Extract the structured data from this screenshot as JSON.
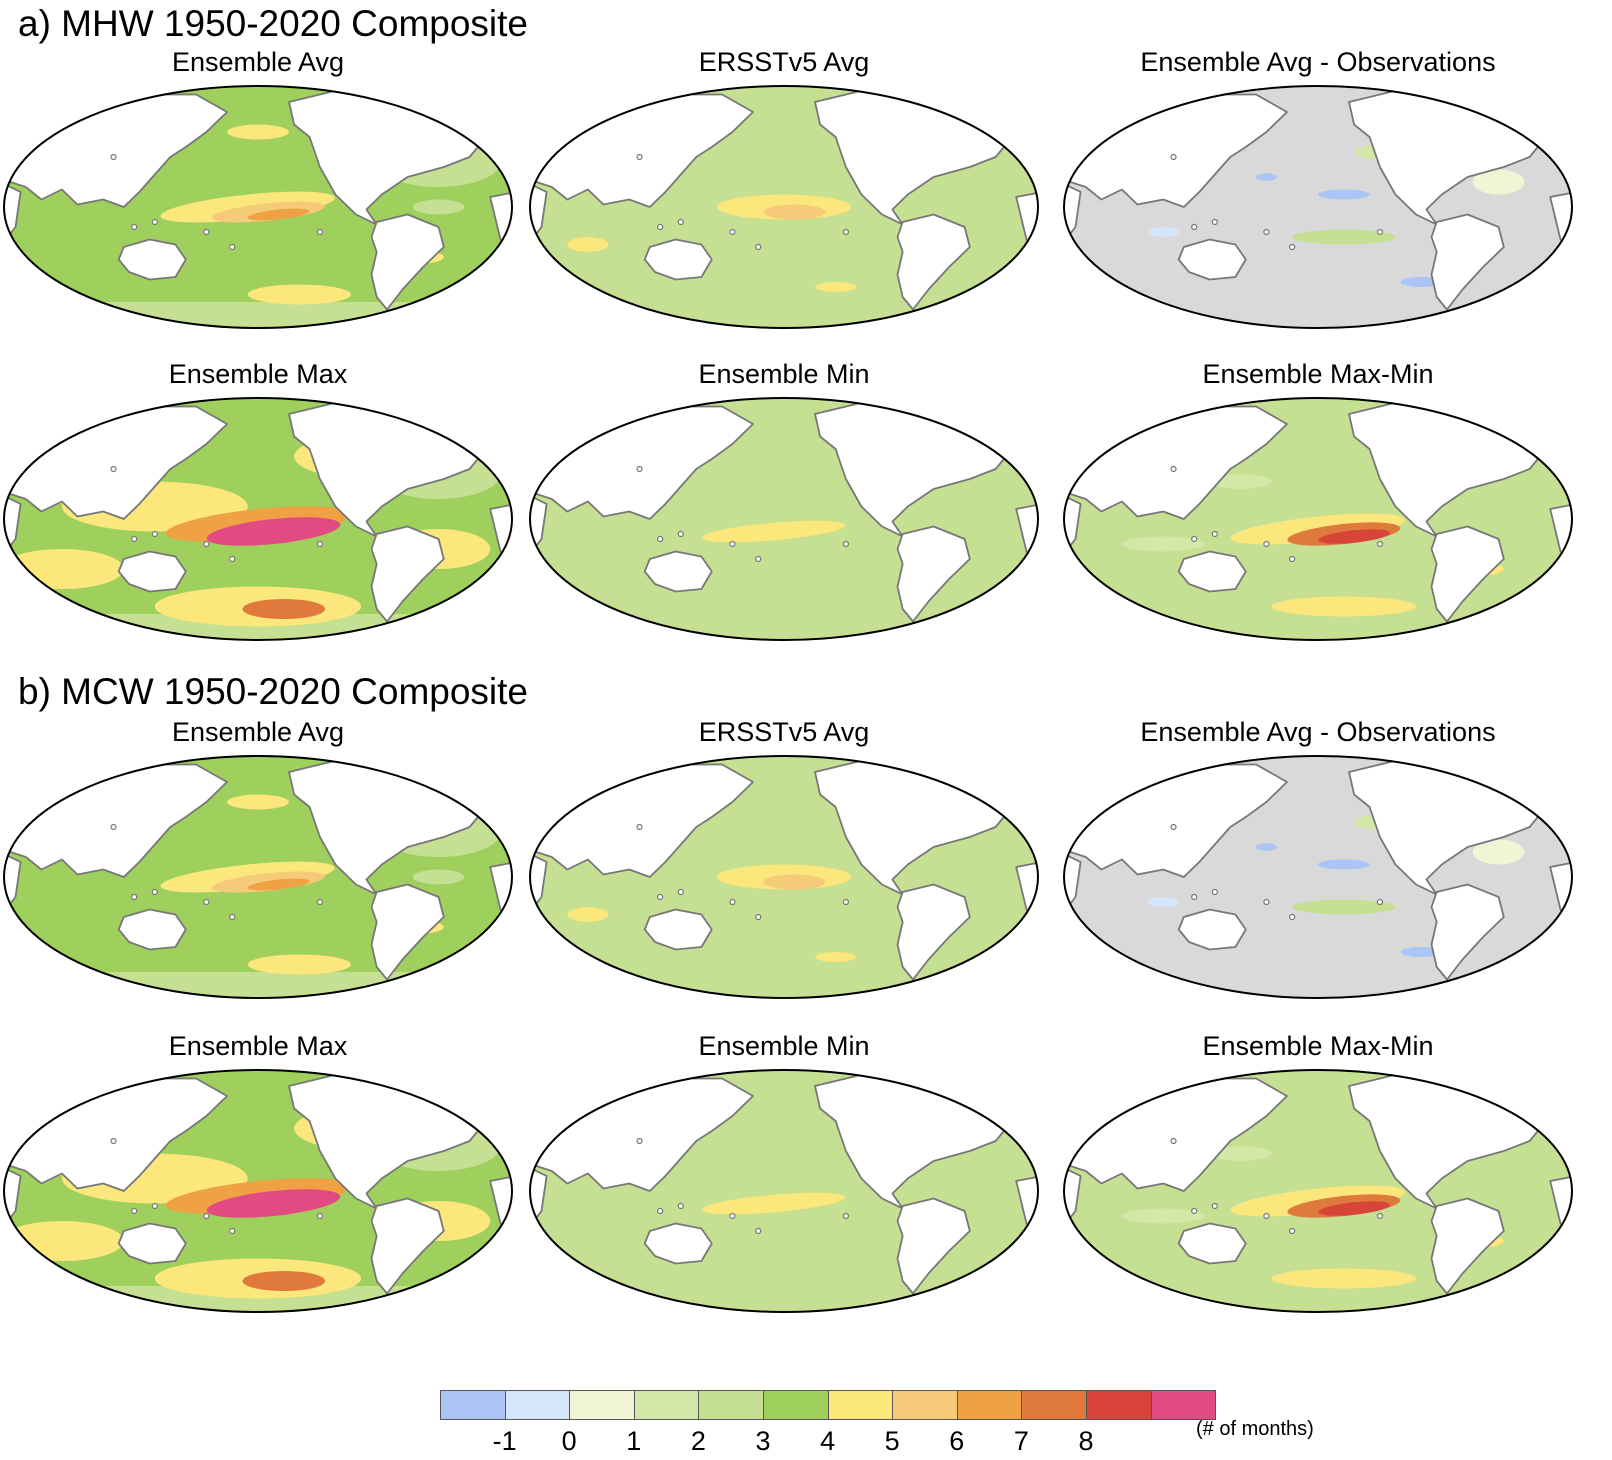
{
  "sections": [
    {
      "title": "a) MHW 1950-2020 Composite",
      "panels": [
        {
          "title": "Ensemble Avg",
          "scheme": "avg"
        },
        {
          "title": "ERSSTv5 Avg",
          "scheme": "obs"
        },
        {
          "title": "Ensemble Avg - Observations",
          "scheme": "diff"
        },
        {
          "title": "Ensemble Max",
          "scheme": "max"
        },
        {
          "title": "Ensemble Min",
          "scheme": "min"
        },
        {
          "title": "Ensemble Max-Min",
          "scheme": "range"
        }
      ]
    },
    {
      "title": "b) MCW 1950-2020 Composite",
      "panels": [
        {
          "title": "Ensemble Avg",
          "scheme": "avg"
        },
        {
          "title": "ERSSTv5 Avg",
          "scheme": "obs"
        },
        {
          "title": "Ensemble Avg - Observations",
          "scheme": "diff"
        },
        {
          "title": "Ensemble Max",
          "scheme": "max"
        },
        {
          "title": "Ensemble Min",
          "scheme": "min"
        },
        {
          "title": "Ensemble Max-Min",
          "scheme": "range"
        }
      ]
    }
  ],
  "colorbar": {
    "colors": [
      "#a9c4f5",
      "#d5e6fb",
      "#f1f5d6",
      "#d3e7a6",
      "#c5df93",
      "#9fcf5d",
      "#fbe77b",
      "#f5ca78",
      "#eea243",
      "#e07a3c",
      "#d8433a",
      "#e24a82"
    ],
    "tick_labels": [
      "-1",
      "0",
      "1",
      "2",
      "3",
      "4",
      "5",
      "6",
      "7",
      "8"
    ],
    "unit": "(# of months)"
  },
  "colors": {
    "land": "#ffffff",
    "coast": "#777777",
    "map_border": "#000000",
    "diff_background": "#d9d9d9"
  }
}
